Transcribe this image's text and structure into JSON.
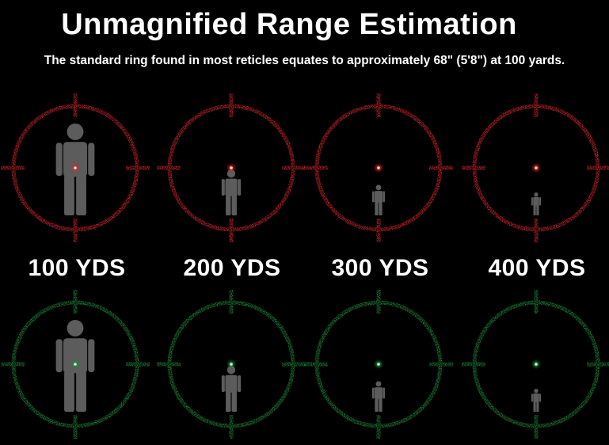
{
  "title": "Unmagnified Range Estimation",
  "subtitle": "The standard ring found in most reticles equates to approximately 68\" (5'8\") at 100 yards.",
  "distances": [
    "100 YDS",
    "200 YDS",
    "300 YDS",
    "400 YDS"
  ],
  "reticle_colors": {
    "red": "#d8262a",
    "green": "#1f8a3a",
    "red_dot": "#ffd2d2",
    "green_dot": "#ccffcc",
    "figure": "#6d6d6d"
  },
  "figure_scale": [
    1.0,
    0.5,
    0.333,
    0.25
  ],
  "icons": [
    "red-reticle-icon",
    "green-reticle-icon",
    "human-silhouette-icon"
  ]
}
